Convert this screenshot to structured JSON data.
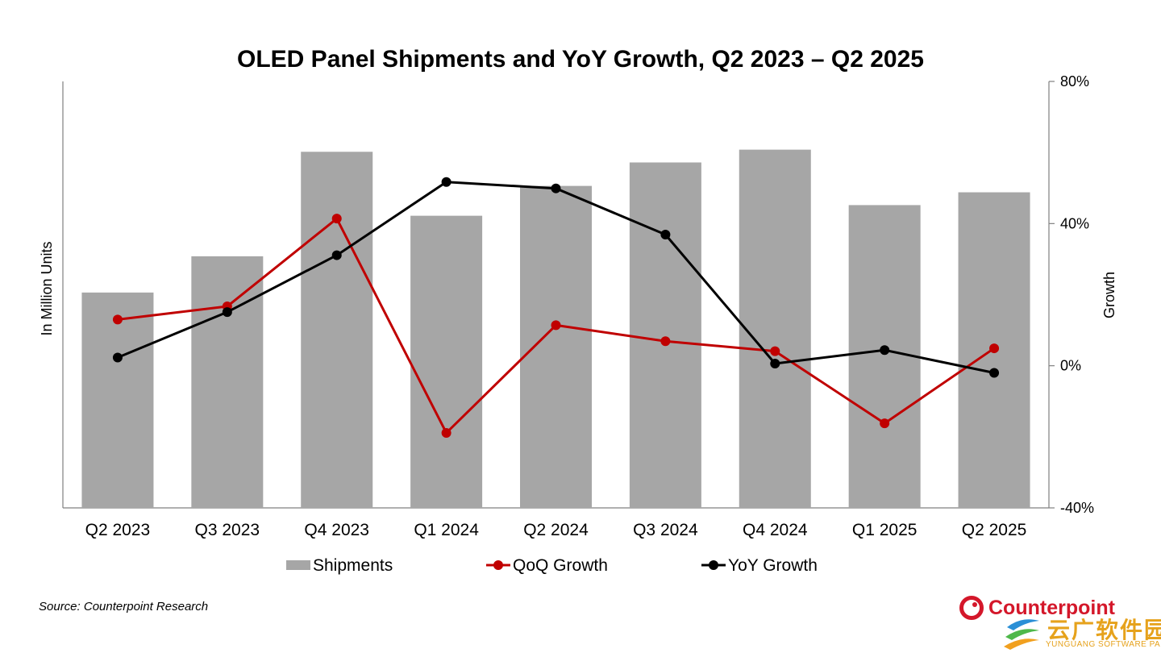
{
  "chart_data": {
    "type": "bar+line",
    "title": "OLED Panel Shipments and YoY Growth, Q2 2023 – Q2 2025",
    "categories": [
      "Q2 2023",
      "Q3 2023",
      "Q4 2023",
      "Q1 2024",
      "Q2 2024",
      "Q3 2024",
      "Q4 2024",
      "Q1 2025",
      "Q2 2025"
    ],
    "ylabel": "In Million Units",
    "y2label": "Growth",
    "y2ticks": [
      "80%",
      "40%",
      "0%",
      "-40%"
    ],
    "y2lim": [
      -40,
      80
    ],
    "shipments_scale_max": 100,
    "series": [
      {
        "name": "Shipments",
        "axis": "left",
        "type": "bar",
        "color": "#a6a6a6",
        "values": [
          50.5,
          59.0,
          83.5,
          68.5,
          75.5,
          81.0,
          84.0,
          71.0,
          74.0
        ]
      },
      {
        "name": "QoQ Growth",
        "axis": "right",
        "type": "line",
        "color": "#c00000",
        "values": [
          13.0,
          16.7,
          41.4,
          -18.9,
          11.4,
          6.9,
          4.1,
          -16.2,
          4.9
        ]
      },
      {
        "name": "YoY Growth",
        "axis": "right",
        "type": "line",
        "color": "#000000",
        "values": [
          2.3,
          15.1,
          31.1,
          51.7,
          49.9,
          36.9,
          0.6,
          4.4,
          -2.0
        ]
      }
    ],
    "legend": [
      "Shipments",
      "QoQ Growth",
      "YoY Growth"
    ],
    "legend_position": "bottom",
    "grid": false
  },
  "source": "Source: Counterpoint Research",
  "brand": {
    "name": "Counterpoint",
    "color": "#d4172a"
  },
  "watermark": {
    "cn": "云广软件园",
    "en": "YUNGUANG SOFTWARE PARK"
  }
}
